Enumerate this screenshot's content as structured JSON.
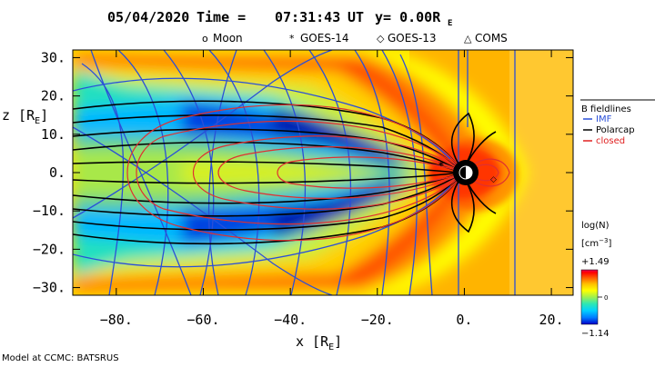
{
  "chart_data": {
    "type": "heatmap",
    "title": {
      "date": "05/04/2020",
      "time_label": "Time = ",
      "time": "07:31:43",
      "time_unit": "UT",
      "cut": "y= 0.00R",
      "cut_sub": "E"
    },
    "markers": [
      {
        "symbol": "o",
        "name": "Moon"
      },
      {
        "symbol": "*",
        "name": "GOES-14"
      },
      {
        "symbol": "◇",
        "name": "GOES-13"
      },
      {
        "symbol": "△",
        "name": "COMS"
      }
    ],
    "xlabel": {
      "text": "x [R",
      "sub": "E",
      "close": "]"
    },
    "ylabel": {
      "text": "z [R",
      "sub": "E",
      "close": "]"
    },
    "xlim": [
      -90,
      25
    ],
    "ylim": [
      -32,
      32
    ],
    "xticks": [
      {
        "v": -80,
        "label": "−80."
      },
      {
        "v": -60,
        "label": "−60."
      },
      {
        "v": -40,
        "label": "−40."
      },
      {
        "v": -20,
        "label": "−20."
      },
      {
        "v": 0,
        "label": "0."
      },
      {
        "v": 20,
        "label": "20."
      }
    ],
    "yticks": [
      {
        "v": 30,
        "label": "30."
      },
      {
        "v": 20,
        "label": "20."
      },
      {
        "v": 10,
        "label": "10."
      },
      {
        "v": 0,
        "label": "0."
      },
      {
        "v": -10,
        "label": "−10."
      },
      {
        "v": -20,
        "label": "−20."
      },
      {
        "v": -30,
        "label": "−30."
      }
    ],
    "legend": {
      "title": "B fieldlines",
      "entries": [
        {
          "label": "IMF",
          "color": "#2a4fd8"
        },
        {
          "label": "Polarcap",
          "color": "#000000"
        },
        {
          "label": "closed",
          "color": "#e02020"
        }
      ]
    },
    "colorbar": {
      "title": "log(N)",
      "unit": "[cm",
      "unit_sup": "−3",
      "unit_close": "]",
      "max_label": "+1.49",
      "mid_label": "0",
      "min_label": "−1.14",
      "min": -1.14,
      "max": 1.49,
      "colors": [
        "#0000c8",
        "#0078ff",
        "#00d0ff",
        "#30e8b0",
        "#a0f050",
        "#ffff00",
        "#ffc000",
        "#ff6000",
        "#ff0000",
        "#e00060"
      ]
    },
    "footer": "Model at CCMC: BATSRUS"
  }
}
